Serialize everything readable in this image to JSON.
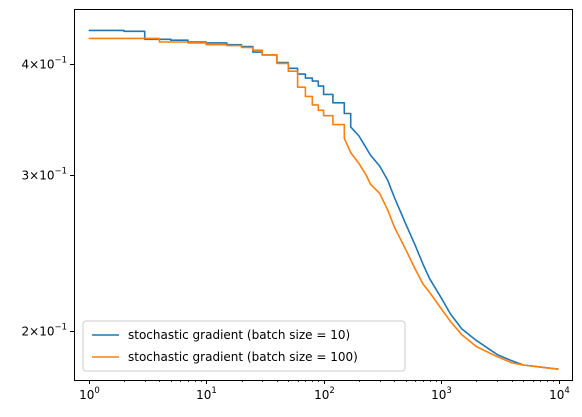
{
  "chart_data": {
    "type": "line",
    "xscale": "log",
    "yscale": "log",
    "xlim": [
      0.75,
      13000
    ],
    "ylim": [
      0.176,
      0.462
    ],
    "grid": false,
    "legend_position": "lower-left",
    "x_ticks": [
      {
        "value": 1,
        "base": "10",
        "exp": "0"
      },
      {
        "value": 10,
        "base": "10",
        "exp": "1"
      },
      {
        "value": 100,
        "base": "10",
        "exp": "2"
      },
      {
        "value": 1000,
        "base": "10",
        "exp": "3"
      },
      {
        "value": 10000,
        "base": "10",
        "exp": "4"
      }
    ],
    "y_ticks": [
      {
        "value": 0.2,
        "mant": "2",
        "times": "×",
        "base": "10",
        "exp": "−1"
      },
      {
        "value": 0.3,
        "mant": "3",
        "times": "×",
        "base": "10",
        "exp": "−1"
      },
      {
        "value": 0.4,
        "mant": "4",
        "times": "×",
        "base": "10",
        "exp": "−1"
      }
    ],
    "series": [
      {
        "name": "stochastic gradient (batch size = 10)",
        "color": "#1f77b4",
        "x": [
          1,
          2,
          3,
          5,
          7,
          10,
          15,
          20,
          25,
          30,
          40,
          50,
          60,
          70,
          80,
          90,
          100,
          120,
          150,
          170,
          200,
          230,
          250,
          300,
          350,
          400,
          500,
          600,
          700,
          800,
          1000,
          1200,
          1500,
          2000,
          3000,
          4000,
          5000,
          7000,
          10000
        ],
        "y": [
          0.437,
          0.436,
          0.427,
          0.426,
          0.424,
          0.423,
          0.421,
          0.419,
          0.413,
          0.41,
          0.402,
          0.396,
          0.39,
          0.386,
          0.383,
          0.378,
          0.37,
          0.362,
          0.352,
          0.34,
          0.332,
          0.322,
          0.316,
          0.307,
          0.296,
          0.283,
          0.264,
          0.25,
          0.238,
          0.229,
          0.218,
          0.209,
          0.201,
          0.195,
          0.188,
          0.185,
          0.183,
          0.182,
          0.181
        ]
      },
      {
        "name": "stochastic gradient (batch size = 100)",
        "color": "#ff7f0e",
        "x": [
          1,
          2,
          3,
          4,
          5,
          7,
          10,
          15,
          20,
          25,
          30,
          40,
          50,
          60,
          70,
          80,
          90,
          100,
          120,
          150,
          170,
          200,
          230,
          250,
          300,
          350,
          400,
          500,
          600,
          700,
          800,
          1000,
          1200,
          1500,
          2000,
          3000,
          4000,
          5000,
          7000,
          10000
        ],
        "y": [
          0.428,
          0.428,
          0.428,
          0.424,
          0.424,
          0.423,
          0.421,
          0.42,
          0.418,
          0.415,
          0.41,
          0.401,
          0.393,
          0.377,
          0.368,
          0.36,
          0.355,
          0.35,
          0.342,
          0.33,
          0.318,
          0.309,
          0.3,
          0.293,
          0.286,
          0.274,
          0.262,
          0.247,
          0.235,
          0.226,
          0.221,
          0.212,
          0.205,
          0.198,
          0.192,
          0.187,
          0.184,
          0.183,
          0.182,
          0.181
        ]
      }
    ]
  }
}
